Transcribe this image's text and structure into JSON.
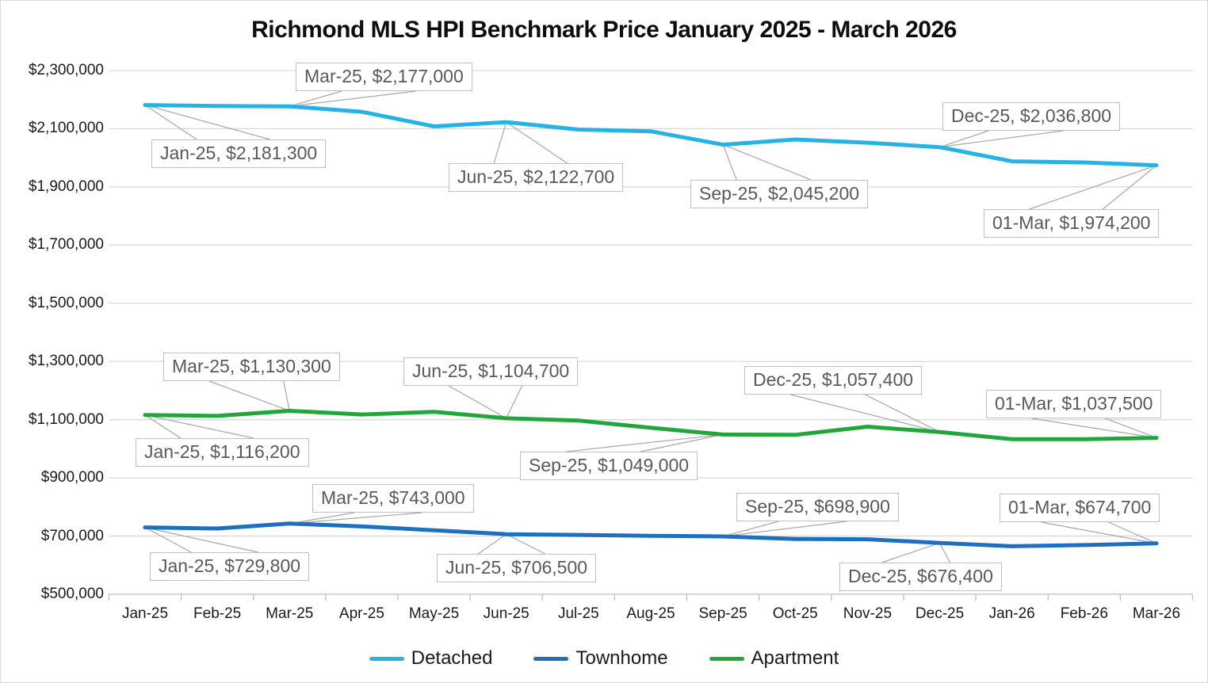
{
  "title": "Richmond MLS HPI Benchmark Price January 2025 - March 2026",
  "colors": {
    "detached": "#27B2E6",
    "townhome": "#1E6FBF",
    "apartment": "#22A63C",
    "gridline": "#D9D9D9",
    "axis_line": "#BFBFBF",
    "leader_line": "#A6A6A6",
    "callout_border": "#BFBFBF",
    "callout_text": "#595959",
    "axis_text": "#1A1A1A"
  },
  "chart_data": {
    "type": "line",
    "title": "Richmond MLS HPI Benchmark Price January 2025 - March 2026",
    "xlabel": "",
    "ylabel": "",
    "grid": true,
    "legend_position": "bottom",
    "ylim": [
      500000,
      2300000
    ],
    "ytick_step": 200000,
    "y_tick_labels": [
      "$2,300,000",
      "$2,100,000",
      "$1,900,000",
      "$1,700,000",
      "$1,500,000",
      "$1,300,000",
      "$1,100,000",
      "$900,000",
      "$700,000",
      "$500,000"
    ],
    "y_tick_values": [
      2300000,
      2100000,
      1900000,
      1700000,
      1500000,
      1300000,
      1100000,
      900000,
      700000,
      500000
    ],
    "categories": [
      "Jan-25",
      "Feb-25",
      "Mar-25",
      "Apr-25",
      "May-25",
      "Jun-25",
      "Jul-25",
      "Aug-25",
      "Sep-25",
      "Oct-25",
      "Nov-25",
      "Dec-25",
      "Jan-26",
      "Feb-26",
      "Mar-26"
    ],
    "series": [
      {
        "name": "Detached",
        "color_key": "detached",
        "values": [
          2181300,
          2178000,
          2177000,
          2158000,
          2108000,
          2122700,
          2097000,
          2091000,
          2045200,
          2063000,
          2052000,
          2036800,
          1988000,
          1984000,
          1974200
        ]
      },
      {
        "name": "Townhome",
        "color_key": "townhome",
        "values": [
          729800,
          726000,
          743000,
          733000,
          720000,
          706500,
          704000,
          701000,
          698900,
          690000,
          689000,
          676400,
          665000,
          669000,
          674700
        ]
      },
      {
        "name": "Apartment",
        "color_key": "apartment",
        "values": [
          1116200,
          1113000,
          1130300,
          1118000,
          1127000,
          1104700,
          1097000,
          1072000,
          1049000,
          1048000,
          1076000,
          1057400,
          1033000,
          1033000,
          1037500
        ]
      }
    ]
  },
  "callouts": [
    {
      "series": "Detached",
      "index": 0,
      "text": "Jan-25, $2,181,300"
    },
    {
      "series": "Detached",
      "index": 2,
      "text": "Mar-25, $2,177,000"
    },
    {
      "series": "Detached",
      "index": 5,
      "text": "Jun-25, $2,122,700"
    },
    {
      "series": "Detached",
      "index": 8,
      "text": "Sep-25, $2,045,200"
    },
    {
      "series": "Detached",
      "index": 11,
      "text": "Dec-25, $2,036,800"
    },
    {
      "series": "Detached",
      "index": 14,
      "text": "01-Mar, $1,974,200"
    },
    {
      "series": "Apartment",
      "index": 0,
      "text": "Jan-25, $1,116,200"
    },
    {
      "series": "Apartment",
      "index": 2,
      "text": "Mar-25, $1,130,300"
    },
    {
      "series": "Apartment",
      "index": 5,
      "text": "Jun-25, $1,104,700"
    },
    {
      "series": "Apartment",
      "index": 8,
      "text": "Sep-25, $1,049,000"
    },
    {
      "series": "Apartment",
      "index": 11,
      "text": "Dec-25, $1,057,400"
    },
    {
      "series": "Apartment",
      "index": 14,
      "text": "01-Mar, $1,037,500"
    },
    {
      "series": "Townhome",
      "index": 0,
      "text": "Jan-25, $729,800"
    },
    {
      "series": "Townhome",
      "index": 2,
      "text": "Mar-25, $743,000"
    },
    {
      "series": "Townhome",
      "index": 5,
      "text": "Jun-25, $706,500"
    },
    {
      "series": "Townhome",
      "index": 8,
      "text": "Sep-25, $698,900"
    },
    {
      "series": "Townhome",
      "index": 11,
      "text": "Dec-25, $676,400"
    },
    {
      "series": "Townhome",
      "index": 14,
      "text": "01-Mar, $674,700"
    }
  ],
  "legend": {
    "entries": [
      "Detached",
      "Townhome",
      "Apartment"
    ]
  }
}
